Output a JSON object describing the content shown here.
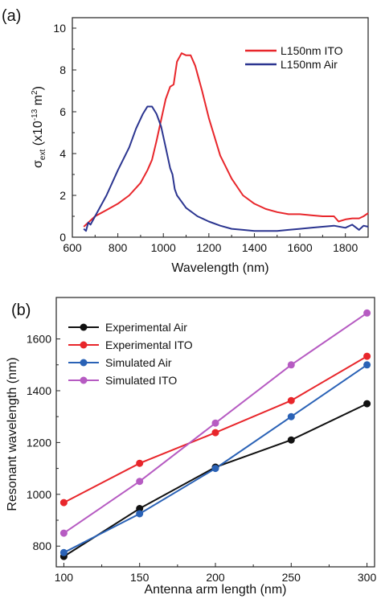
{
  "chart_data": [
    {
      "type": "line",
      "panel_label": "(a)",
      "xlabel": "Wavelength (nm)",
      "ylabel": "σext (x10⁻¹³ m²)",
      "ylabel_main": "σ",
      "ylabel_sub": "ext",
      "ylabel_rest": " (x10",
      "ylabel_exp": "-13",
      "ylabel_unit": " m",
      "ylabel_sq": "2",
      "ylabel_close": ")",
      "xlim": [
        600,
        1900
      ],
      "ylim": [
        0,
        10.5
      ],
      "xticks": [
        "600",
        "800",
        "1000",
        "1200",
        "1400",
        "1600",
        "1800"
      ],
      "yticks": [
        "0",
        "2",
        "4",
        "6",
        "8",
        "10"
      ],
      "grid": false,
      "legend_position": "top-right",
      "series": [
        {
          "name": "L150nm ITO",
          "color": "#e8262b",
          "x": [
            650,
            660,
            680,
            700,
            750,
            800,
            850,
            900,
            930,
            950,
            970,
            990,
            1010,
            1030,
            1045,
            1060,
            1080,
            1100,
            1120,
            1140,
            1170,
            1200,
            1250,
            1300,
            1350,
            1400,
            1450,
            1500,
            1550,
            1600,
            1650,
            1700,
            1750,
            1770,
            1800,
            1830,
            1860,
            1880,
            1900
          ],
          "y": [
            0.5,
            0.6,
            0.8,
            1.0,
            1.3,
            1.6,
            2.0,
            2.6,
            3.2,
            3.7,
            4.6,
            5.6,
            6.6,
            7.2,
            7.3,
            8.4,
            8.8,
            8.7,
            8.7,
            8.2,
            7.0,
            5.7,
            3.9,
            2.8,
            2.0,
            1.6,
            1.35,
            1.2,
            1.1,
            1.1,
            1.05,
            1.0,
            1.0,
            0.75,
            0.85,
            0.9,
            0.9,
            1.0,
            1.15
          ]
        },
        {
          "name": "L150nm Air",
          "color": "#2b3590",
          "x": [
            650,
            660,
            670,
            680,
            700,
            750,
            800,
            850,
            880,
            910,
            930,
            950,
            970,
            990,
            1010,
            1030,
            1040,
            1050,
            1060,
            1080,
            1100,
            1150,
            1200,
            1250,
            1300,
            1350,
            1400,
            1450,
            1500,
            1550,
            1600,
            1650,
            1700,
            1750,
            1800,
            1830,
            1860,
            1880,
            1900
          ],
          "y": [
            0.4,
            0.3,
            0.7,
            0.6,
            1.0,
            2.0,
            3.2,
            4.3,
            5.2,
            5.9,
            6.25,
            6.25,
            5.9,
            5.3,
            4.3,
            3.3,
            3.0,
            2.3,
            2.0,
            1.7,
            1.4,
            1.0,
            0.75,
            0.55,
            0.4,
            0.35,
            0.3,
            0.3,
            0.3,
            0.35,
            0.4,
            0.45,
            0.5,
            0.55,
            0.45,
            0.6,
            0.35,
            0.55,
            0.5
          ]
        }
      ]
    },
    {
      "type": "line",
      "panel_label": "(b)",
      "xlabel": "Antenna arm length (nm)",
      "ylabel": "Resonant wavelength (nm)",
      "xlim": [
        95,
        305
      ],
      "ylim": [
        720,
        1760
      ],
      "xticks": [
        "100",
        "150",
        "200",
        "250",
        "300"
      ],
      "yticks": [
        "800",
        "1000",
        "1200",
        "1400",
        "1600"
      ],
      "grid": false,
      "legend_position": "top-left",
      "x": [
        100,
        150,
        200,
        250,
        300
      ],
      "series": [
        {
          "name": "Experimental Air",
          "color": "#111111",
          "values": [
            760,
            945,
            1105,
            1210,
            1350
          ]
        },
        {
          "name": "Experimental ITO",
          "color": "#e8262b",
          "values": [
            968,
            1120,
            1238,
            1362,
            1533
          ]
        },
        {
          "name": "Simulated Air",
          "color": "#2a62b6",
          "values": [
            775,
            925,
            1100,
            1300,
            1500
          ]
        },
        {
          "name": "Simulated ITO",
          "color": "#b65bc2",
          "values": [
            850,
            1050,
            1275,
            1500,
            1700
          ]
        }
      ]
    }
  ]
}
